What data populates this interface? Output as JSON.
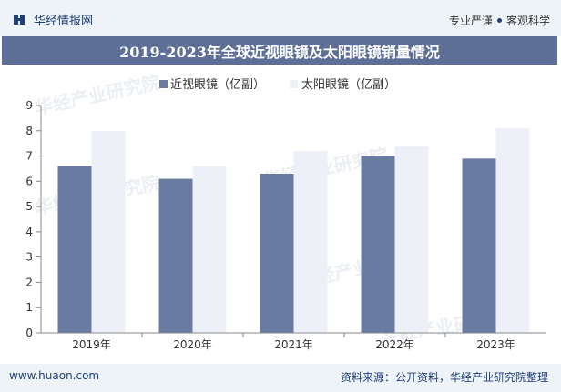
{
  "header": {
    "logo_text": "华经情报网",
    "tagline_left": "专业严谨",
    "tagline_right": "客观科学"
  },
  "title": "2019-2023年全球近视眼镜及太阳眼镜销量情况",
  "footer": {
    "website": "www.huaon.com",
    "source": "资料来源：公开资料，华经产业研究院整理"
  },
  "watermark": {
    "text": "华经产业研究院",
    "url": "www.huaon.com"
  },
  "colors": {
    "series1": "#6a7ba2",
    "series2": "#eef0f7",
    "title_bg": "#5d6f97",
    "brand": "#1f3f78"
  },
  "chart_data": {
    "type": "bar",
    "title": "2019-2023年全球近视眼镜及太阳眼镜销量情况",
    "categories": [
      "2019年",
      "2020年",
      "2021年",
      "2022年",
      "2023年"
    ],
    "series": [
      {
        "name": "近视眼镜（亿副）",
        "values": [
          6.6,
          6.1,
          6.3,
          7.0,
          6.9
        ],
        "color": "#6a7ba2"
      },
      {
        "name": "太阳眼镜（亿副）",
        "values": [
          8.0,
          6.6,
          7.2,
          7.4,
          8.1
        ],
        "color": "#eef0f7"
      }
    ],
    "ylim": [
      0,
      9
    ],
    "yticks": [
      "0",
      "1",
      "2",
      "3",
      "4",
      "5",
      "6",
      "7",
      "8",
      "9"
    ],
    "legend_position": "top-left",
    "grid": false
  }
}
